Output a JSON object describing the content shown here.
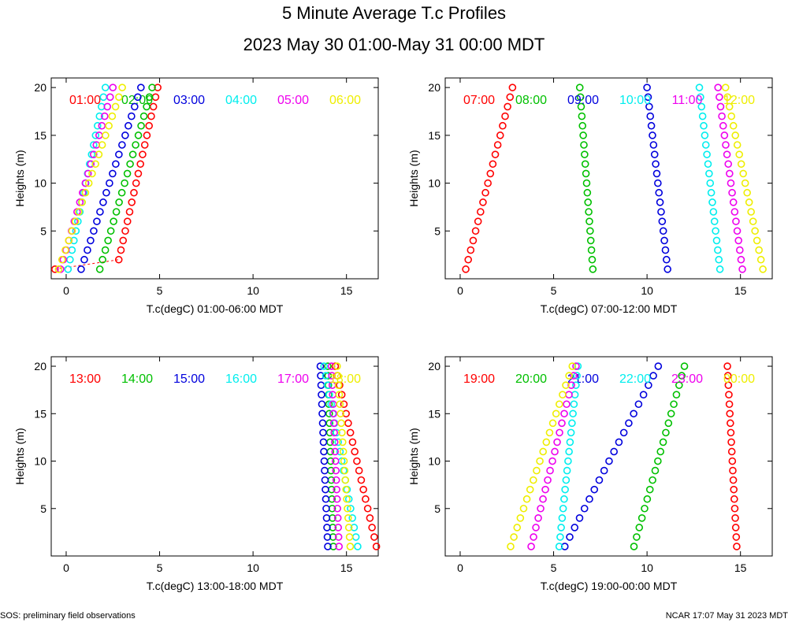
{
  "header": {
    "title": "5 Minute Average T.c Profiles",
    "subtitle": "2023 May 30 01:00-May 31 00:00 MDT"
  },
  "footer": {
    "left": "SOS: preliminary field observations",
    "right": "NCAR 17:07 May 31 2023 MDT"
  },
  "colors": {
    "red": "#ff0000",
    "green": "#00c000",
    "blue": "#0000dd",
    "cyan": "#00eeee",
    "magenta": "#ee00ee",
    "yellow": "#eeee00"
  },
  "chart_data": [
    {
      "type": "scatter",
      "xlabel": "T.c(degC) 01:00-06:00 MDT",
      "ylabel": "Heights (m)",
      "xlim": [
        -0.8,
        16.7
      ],
      "ylim": [
        0,
        21
      ],
      "xticks": [
        0,
        5,
        10,
        15
      ],
      "yticks": [
        5,
        10,
        15,
        20
      ],
      "series": [
        {
          "name": "01:00",
          "color": "red",
          "bottom": 2.7,
          "top": 4.9,
          "lowest": -0.6
        },
        {
          "name": "02:00",
          "color": "green",
          "bottom": 1.8,
          "top": 4.6
        },
        {
          "name": "03:00",
          "color": "blue",
          "bottom": 0.8,
          "top": 4.0
        },
        {
          "name": "04:00",
          "color": "cyan",
          "bottom": 0.1,
          "top": 2.1
        },
        {
          "name": "05:00",
          "color": "magenta",
          "bottom": -0.3,
          "top": 2.5
        },
        {
          "name": "06:00",
          "color": "yellow",
          "bottom": -0.4,
          "top": 3.0
        }
      ]
    },
    {
      "type": "scatter",
      "xlabel": "T.c(degC) 07:00-12:00 MDT",
      "ylabel": "Heights (m)",
      "xlim": [
        -0.8,
        16.7
      ],
      "ylim": [
        0,
        21
      ],
      "xticks": [
        0,
        5,
        10,
        15
      ],
      "yticks": [
        5,
        10,
        15,
        20
      ],
      "series": [
        {
          "name": "07:00",
          "color": "red",
          "bottom": 0.3,
          "top": 2.8
        },
        {
          "name": "08:00",
          "color": "green",
          "bottom": 7.1,
          "top": 6.4
        },
        {
          "name": "09:00",
          "color": "blue",
          "bottom": 11.1,
          "top": 10.0
        },
        {
          "name": "10:00",
          "color": "cyan",
          "bottom": 13.9,
          "top": 12.8
        },
        {
          "name": "11:00",
          "color": "magenta",
          "bottom": 15.1,
          "top": 13.8
        },
        {
          "name": "12:00",
          "color": "yellow",
          "bottom": 16.2,
          "top": 14.2
        }
      ]
    },
    {
      "type": "scatter",
      "xlabel": "T.c(degC) 13:00-18:00 MDT",
      "ylabel": "Heights (m)",
      "xlim": [
        -0.8,
        16.7
      ],
      "ylim": [
        0,
        21
      ],
      "xticks": [
        0,
        5,
        10,
        15
      ],
      "yticks": [
        5,
        10,
        15,
        20
      ],
      "series": [
        {
          "name": "13:00",
          "color": "red",
          "bottom": 16.6,
          "top": 14.4
        },
        {
          "name": "14:00",
          "color": "green",
          "bottom": 14.3,
          "top": 14.0
        },
        {
          "name": "15:00",
          "color": "blue",
          "bottom": 14.0,
          "top": 13.6
        },
        {
          "name": "16:00",
          "color": "cyan",
          "bottom": 15.6,
          "top": 13.8
        },
        {
          "name": "17:00",
          "color": "magenta",
          "bottom": 14.6,
          "top": 14.2
        },
        {
          "name": "18:00",
          "color": "yellow",
          "bottom": 15.2,
          "top": 14.5
        }
      ]
    },
    {
      "type": "scatter",
      "xlabel": "T.c(degC) 19:00-00:00 MDT",
      "ylabel": "Heights (m)",
      "xlim": [
        -0.8,
        16.7
      ],
      "ylim": [
        0,
        21
      ],
      "xticks": [
        0,
        5,
        10,
        15
      ],
      "yticks": [
        5,
        10,
        15,
        20
      ],
      "series": [
        {
          "name": "19:00",
          "color": "red",
          "bottom": 14.8,
          "top": 14.3
        },
        {
          "name": "20:00",
          "color": "green",
          "bottom": 9.3,
          "top": 12.0
        },
        {
          "name": "21:00",
          "color": "blue",
          "bottom": 5.6,
          "top": 10.6
        },
        {
          "name": "22:00",
          "color": "cyan",
          "bottom": 5.3,
          "top": 6.3
        },
        {
          "name": "23:00",
          "color": "magenta",
          "bottom": 3.8,
          "top": 6.2
        },
        {
          "name": "00:00",
          "color": "yellow",
          "bottom": 2.7,
          "top": 6.0
        }
      ]
    }
  ]
}
